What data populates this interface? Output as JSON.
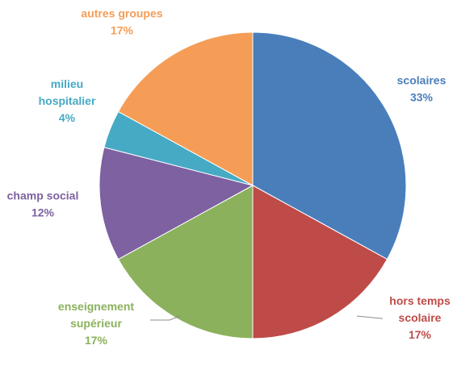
{
  "chart_data": {
    "type": "pie",
    "title": "",
    "legend": "none",
    "start_angle_deg": 0,
    "direction": "clockwise",
    "slices": [
      {
        "label_lines": [
          "scolaires"
        ],
        "label": "scolaires",
        "percent_label": "33%",
        "value": 33,
        "color": "#4A7EBB"
      },
      {
        "label_lines": [
          "hors temps",
          "scolaire"
        ],
        "label": "hors temps scolaire",
        "percent_label": "17%",
        "value": 17,
        "color": "#BE4B48"
      },
      {
        "label_lines": [
          "enseignement",
          "supérieur"
        ],
        "label": "enseignement supérieur",
        "percent_label": "17%",
        "value": 17,
        "color": "#8BB15D"
      },
      {
        "label_lines": [
          "champ social"
        ],
        "label": "champ social",
        "percent_label": "12%",
        "value": 12,
        "color": "#7D61A1"
      },
      {
        "label_lines": [
          "milieu",
          "hospitalier"
        ],
        "label": "milieu hospitalier",
        "percent_label": "4%",
        "value": 4,
        "color": "#46AAC5"
      },
      {
        "label_lines": [
          "autres groupes"
        ],
        "label": "autres groupes",
        "percent_label": "17%",
        "value": 17,
        "color": "#F59D56"
      }
    ],
    "label_color": "matches slice color",
    "leader_lines": [
      "hors temps scolaire",
      "enseignement supérieur"
    ]
  }
}
